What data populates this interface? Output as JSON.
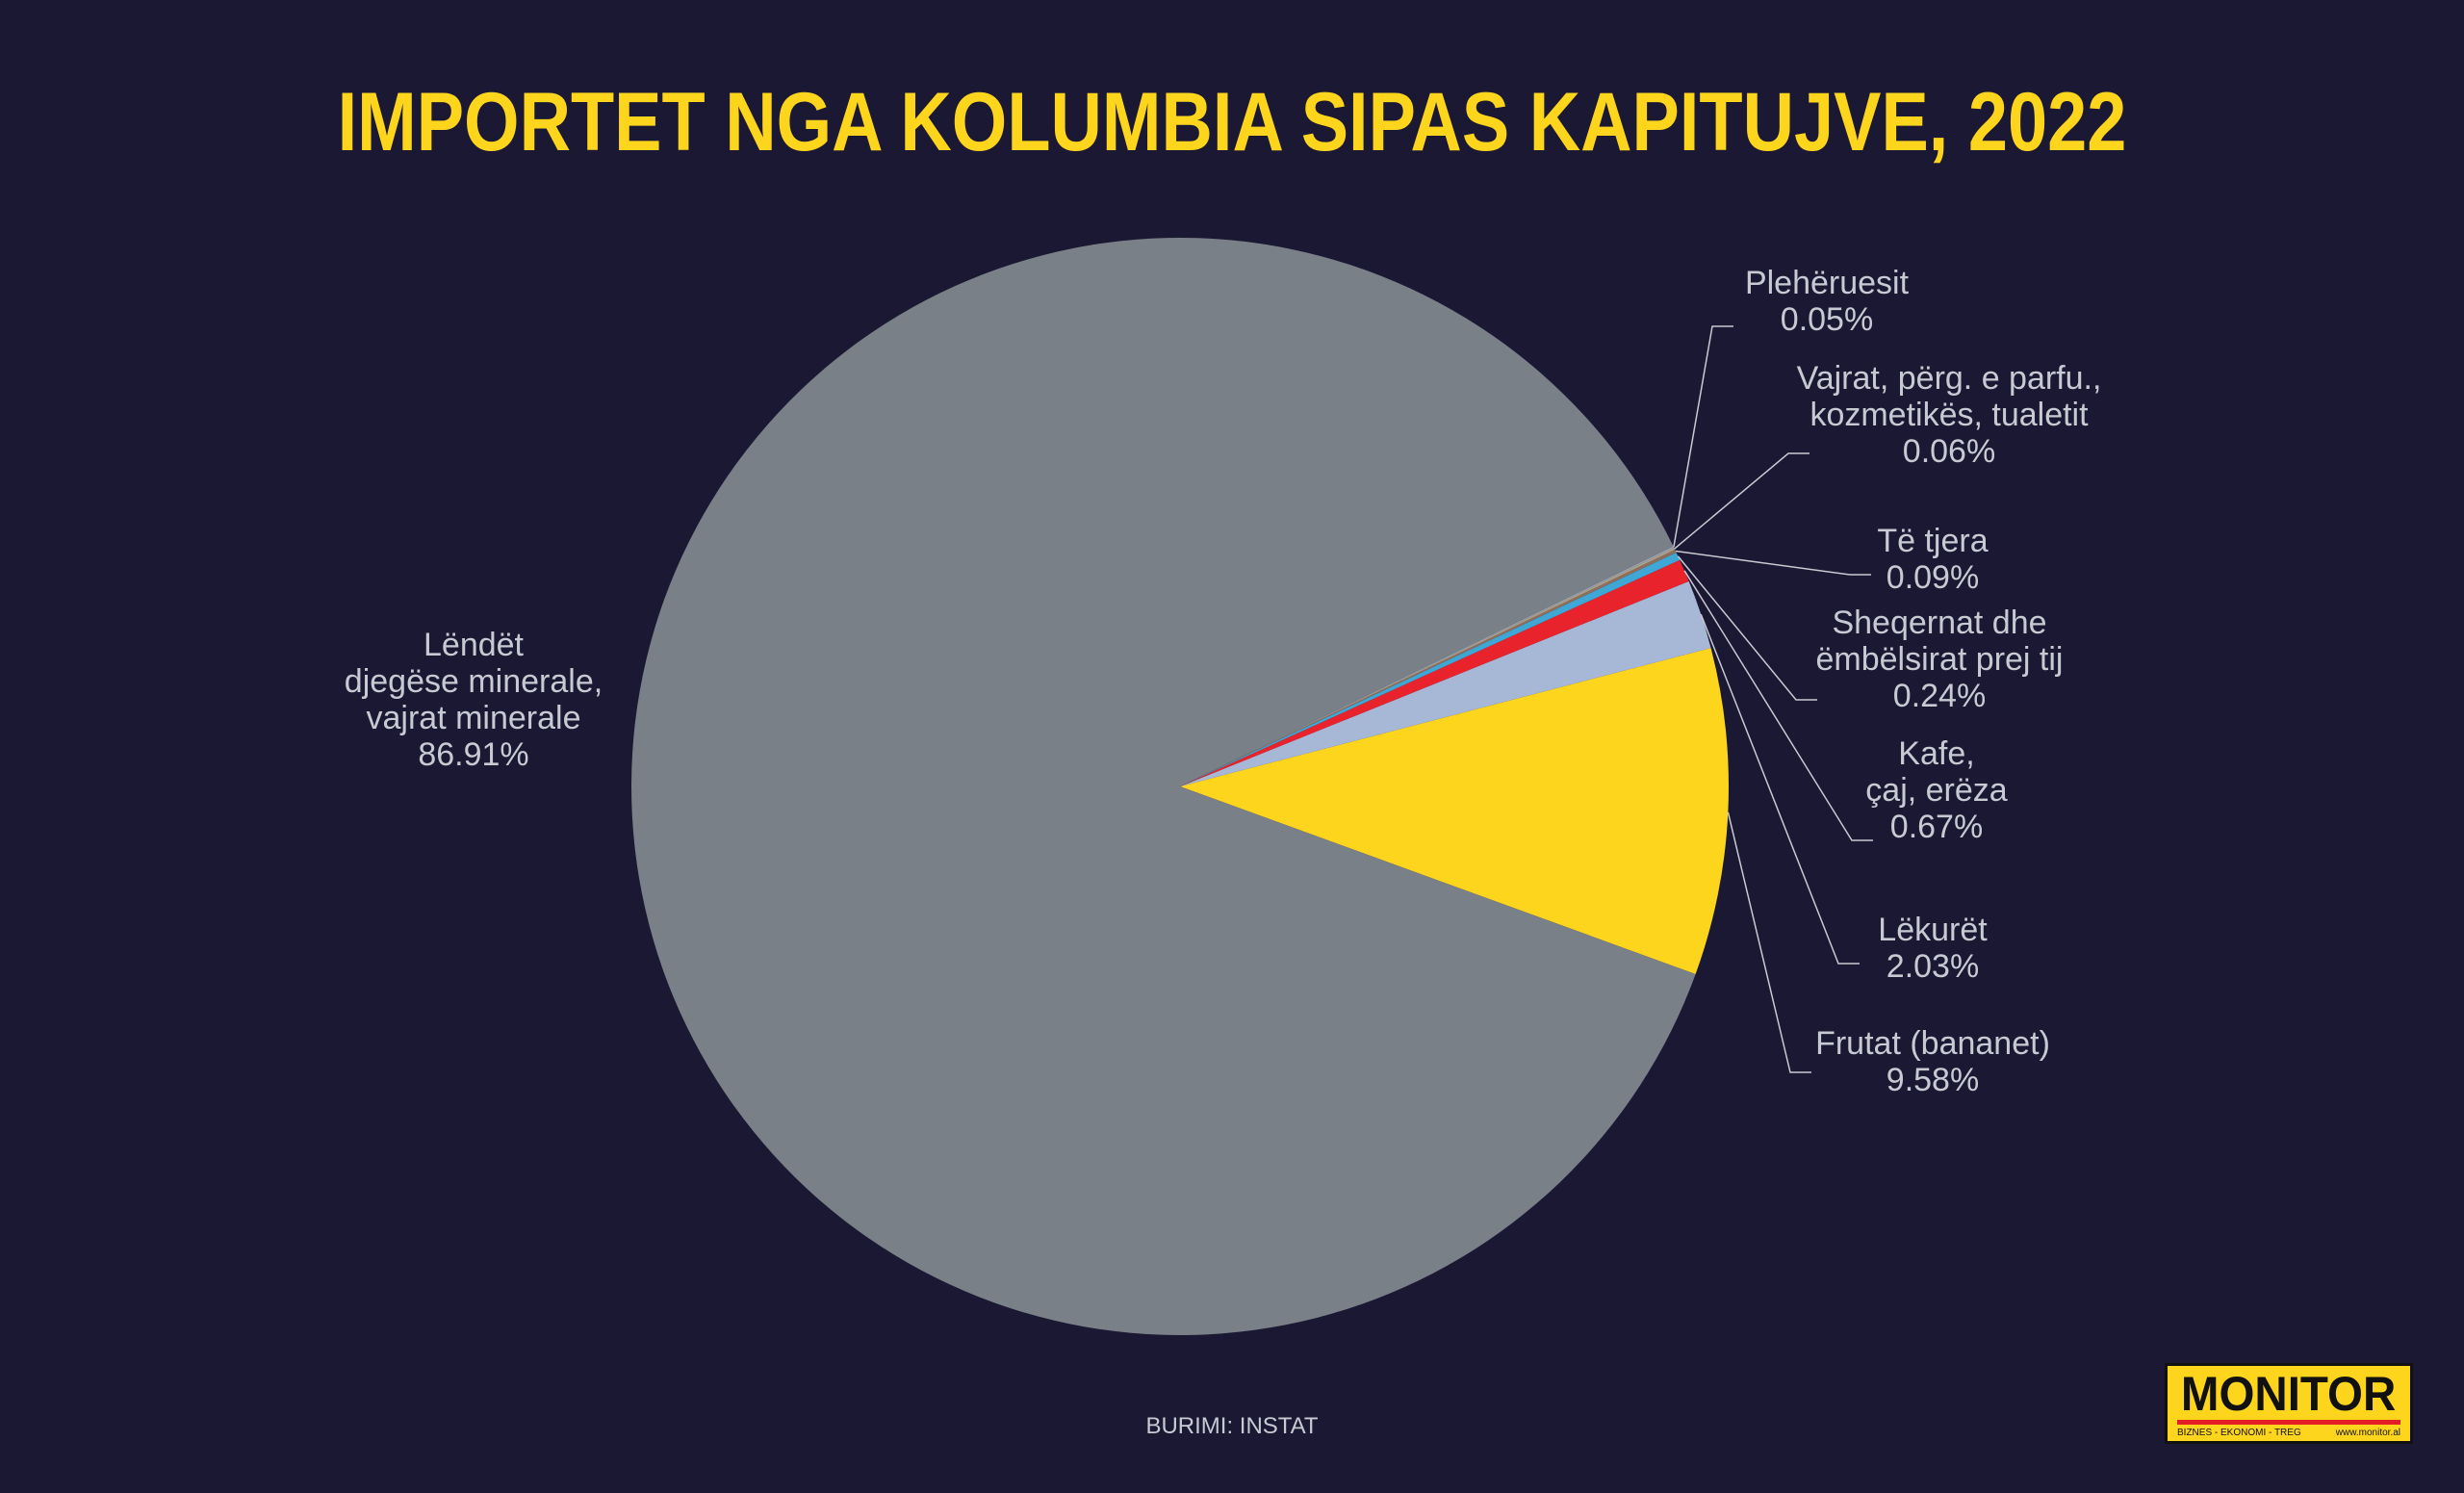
{
  "title": "IMPORTET NGA KOLUMBIA SIPAS KAPITUJVE, 2022",
  "source": "BURIMI: INSTAT",
  "logo": {
    "name": "MONITOR",
    "tagline": "BIZNES - EKONOMI - TREG",
    "url": "www.monitor.al"
  },
  "chart_data": {
    "type": "pie",
    "title": "IMPORTET NGA KOLUMBIA SIPAS KAPITUJVE, 2022",
    "slices": [
      {
        "label": [
          "Frutat (bananet)"
        ],
        "value": 9.58,
        "display": "9.58%",
        "color": "#fed51d"
      },
      {
        "label": [
          "Lëkurët"
        ],
        "value": 2.03,
        "display": "2.03%",
        "color": "#a7b7d6"
      },
      {
        "label": [
          "Kafe,",
          "çaj, erëza"
        ],
        "value": 0.67,
        "display": "0.67%",
        "color": "#e8232b"
      },
      {
        "label": [
          "Sheqernat dhe",
          "ëmbëlsirat prej tij"
        ],
        "value": 0.24,
        "display": "0.24%",
        "color": "#3fa7d6"
      },
      {
        "label": [
          "Të tjera"
        ],
        "value": 0.09,
        "display": "0.09%",
        "color": "#8c6f5c"
      },
      {
        "label": [
          "Vajrat, përg. e parfu.,",
          "kozmetikës, tualetit"
        ],
        "value": 0.06,
        "display": "0.06%",
        "color": "#b0a08a"
      },
      {
        "label": [
          "Plehëruesit"
        ],
        "value": 0.05,
        "display": "0.05%",
        "color": "#9aa4b0"
      },
      {
        "label": [
          "Lëndët",
          "djegëse minerale,",
          "vajrat minerale"
        ],
        "value": 86.91,
        "display": "86.91%",
        "color": "#7a8088"
      }
    ]
  }
}
